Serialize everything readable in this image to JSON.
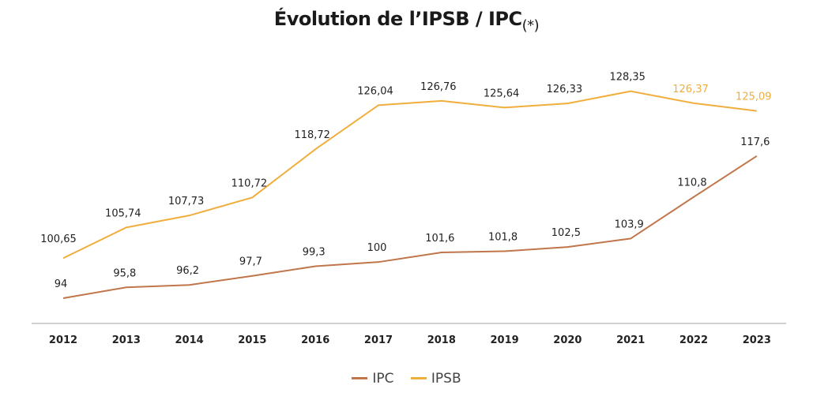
{
  "chart_data": {
    "type": "line",
    "title": "Évolution de l’IPSB / IPC",
    "title_suffix": "(*)",
    "categories": [
      "2012",
      "2013",
      "2014",
      "2015",
      "2016",
      "2017",
      "2018",
      "2019",
      "2020",
      "2021",
      "2022",
      "2023"
    ],
    "series": [
      {
        "name": "IPC",
        "color": "#C0754A",
        "values": [
          94,
          95.8,
          96.2,
          97.7,
          99.3,
          100,
          101.6,
          101.8,
          102.5,
          103.9,
          110.8,
          117.6
        ],
        "labels": [
          "94",
          "95,8",
          "96,2",
          "97,7",
          "99,3",
          "100",
          "101,6",
          "101,8",
          "102,5",
          "103,9",
          "110,8",
          "117,6"
        ]
      },
      {
        "name": "IPSB",
        "color": "#F0AE3C",
        "values": [
          100.65,
          105.74,
          107.73,
          110.72,
          118.72,
          126.04,
          126.76,
          125.64,
          126.33,
          128.35,
          126.37,
          125.09
        ],
        "labels": [
          "100,65",
          "105,74",
          "107,73",
          "110,72",
          "118,72",
          "126,04",
          "126,76",
          "125,64",
          "126,33",
          "128,35",
          "126,37",
          "125,09"
        ],
        "highlight_label_indices": [
          10,
          11
        ]
      }
    ],
    "legend_position": "bottom",
    "grid": false
  }
}
